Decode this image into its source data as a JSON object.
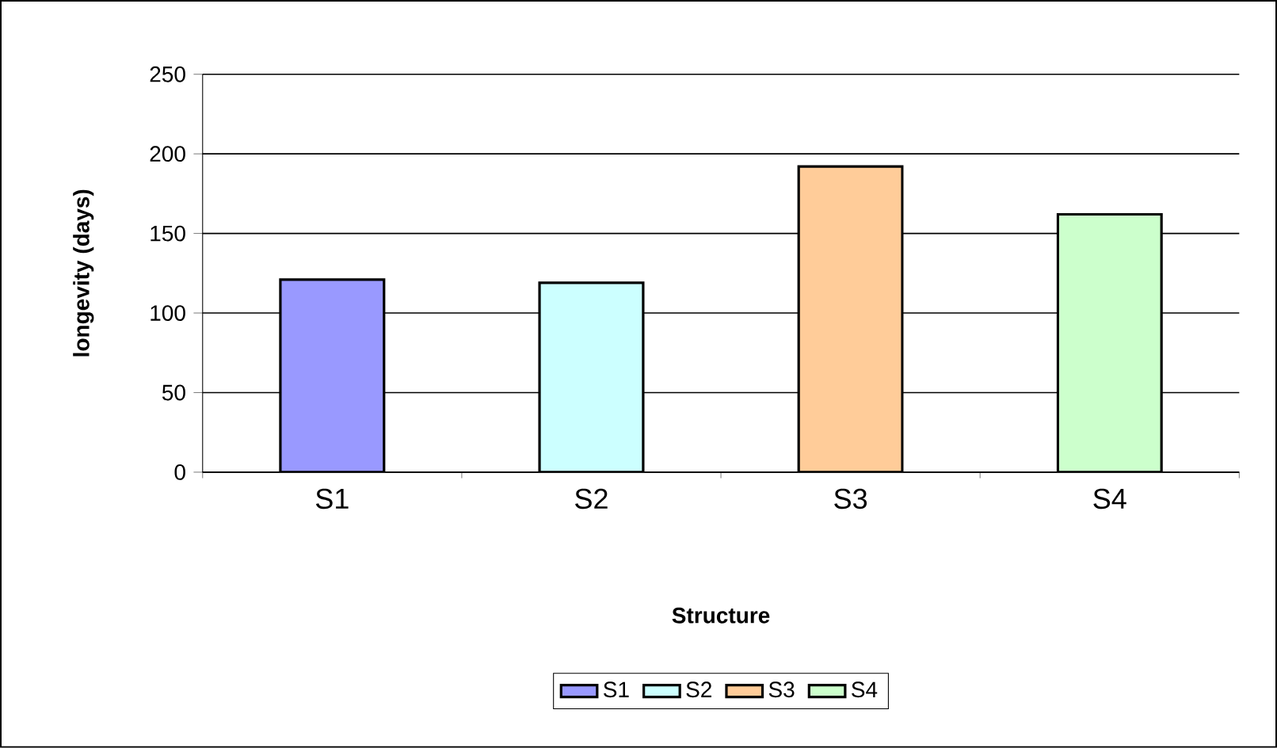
{
  "chart_data": {
    "type": "bar",
    "xlabel": "Structure",
    "ylabel": "longevity (days)",
    "categories": [
      "S1",
      "S2",
      "S3",
      "S4"
    ],
    "series": [
      {
        "name": "S1",
        "color": "#9999ff",
        "values": [
          121,
          null,
          null,
          null
        ]
      },
      {
        "name": "S2",
        "color": "#ccffff",
        "values": [
          null,
          119,
          null,
          null
        ]
      },
      {
        "name": "S3",
        "color": "#ffcc99",
        "values": [
          null,
          null,
          192,
          null
        ]
      },
      {
        "name": "S4",
        "color": "#ccffcc",
        "values": [
          null,
          null,
          null,
          162
        ]
      }
    ],
    "ylim": [
      0,
      250
    ],
    "yticks": [
      0,
      50,
      100,
      150,
      200,
      250
    ],
    "grid": "y",
    "legend": "bottom"
  }
}
